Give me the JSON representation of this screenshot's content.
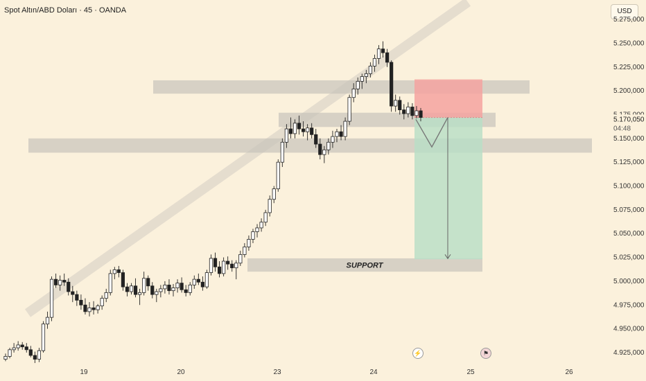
{
  "header": {
    "title": "Spot Altın/ABD Doları · 45 · OANDA",
    "currency": "USD"
  },
  "annotations": {
    "support_label": "SUPPORT",
    "current_price": "5.170,050",
    "countdown": "04:48",
    "partial_price": "5.175,000"
  },
  "events": {
    "lightning_icon": "lightning-icon",
    "flag_icon": "us-flag-icon"
  },
  "chart_data": {
    "type": "candlestick",
    "y_ticks": [
      "5.275,000",
      "5.250,000",
      "5.225,000",
      "5.200,000",
      "5.150,000",
      "5.125,000",
      "5.100,000",
      "5.075,000",
      "5.050,000",
      "5.025,000",
      "5.000,000",
      "4.975,000",
      "4.950,000",
      "4.925,000"
    ],
    "y_tick_values": [
      5275,
      5250,
      5225,
      5200,
      5150,
      5125,
      5100,
      5075,
      5050,
      5025,
      5000,
      4975,
      4950,
      4925
    ],
    "x_ticks": [
      "19",
      "20",
      "23",
      "24",
      "25",
      "26"
    ],
    "ylim": [
      4912,
      5294
    ],
    "zones": [
      {
        "name": "upper-resistance-zone",
        "low": 5197,
        "high": 5211
      },
      {
        "name": "mid-resistance-zone",
        "low": 5162,
        "high": 5177
      },
      {
        "name": "lower-support-zone",
        "low": 5135,
        "high": 5150
      },
      {
        "name": "support-zone",
        "low": 5010,
        "high": 5024
      }
    ],
    "position": {
      "entry": 5172,
      "stop": 5212,
      "target": 5023
    },
    "candles_ohlc": [
      [
        4918,
        4924,
        4916,
        4921
      ],
      [
        4921,
        4930,
        4919,
        4928
      ],
      [
        4928,
        4935,
        4925,
        4930
      ],
      [
        4930,
        4937,
        4927,
        4933
      ],
      [
        4933,
        4936,
        4928,
        4931
      ],
      [
        4931,
        4935,
        4925,
        4928
      ],
      [
        4928,
        4932,
        4920,
        4922
      ],
      [
        4922,
        4926,
        4914,
        4918
      ],
      [
        4918,
        4930,
        4915,
        4927
      ],
      [
        4927,
        4958,
        4925,
        4955
      ],
      [
        4955,
        4968,
        4950,
        4962
      ],
      [
        4962,
        5005,
        4958,
        5002
      ],
      [
        5002,
        5008,
        4993,
        4996
      ],
      [
        4996,
        5006,
        4990,
        5001
      ],
      [
        5001,
        5008,
        4995,
        4999
      ],
      [
        4999,
        5003,
        4985,
        4989
      ],
      [
        4989,
        4995,
        4978,
        4986
      ],
      [
        4986,
        4990,
        4974,
        4980
      ],
      [
        4980,
        4986,
        4970,
        4975
      ],
      [
        4975,
        4982,
        4965,
        4968
      ],
      [
        4968,
        4978,
        4963,
        4972
      ],
      [
        4972,
        4979,
        4965,
        4970
      ],
      [
        4970,
        4976,
        4966,
        4974
      ],
      [
        4974,
        4985,
        4970,
        4982
      ],
      [
        4982,
        4992,
        4978,
        4988
      ],
      [
        4988,
        5012,
        4985,
        5008
      ],
      [
        5008,
        5015,
        5002,
        5012
      ],
      [
        5012,
        5016,
        5004,
        5009
      ],
      [
        5009,
        5012,
        4990,
        4994
      ],
      [
        4994,
        4998,
        4984,
        4989
      ],
      [
        4989,
        4998,
        4986,
        4995
      ],
      [
        4995,
        5003,
        4983,
        4986
      ],
      [
        4986,
        4992,
        4975,
        4988
      ],
      [
        4988,
        5010,
        4985,
        5003
      ],
      [
        5003,
        5006,
        4990,
        4995
      ],
      [
        4995,
        4999,
        4982,
        4986
      ],
      [
        4986,
        4992,
        4978,
        4989
      ],
      [
        4989,
        4996,
        4983,
        4992
      ],
      [
        4992,
        5000,
        4987,
        4996
      ],
      [
        4996,
        5002,
        4986,
        4990
      ],
      [
        4990,
        4997,
        4984,
        4993
      ],
      [
        4993,
        5002,
        4988,
        4998
      ],
      [
        4998,
        5004,
        4988,
        4991
      ],
      [
        4991,
        4996,
        4984,
        4988
      ],
      [
        4988,
        4999,
        4985,
        4996
      ],
      [
        4996,
        5006,
        4992,
        5002
      ],
      [
        5002,
        5008,
        4996,
        4999
      ],
      [
        4999,
        5005,
        4990,
        4994
      ],
      [
        4994,
        5012,
        4992,
        5009
      ],
      [
        5009,
        5028,
        5006,
        5024
      ],
      [
        5024,
        5030,
        5010,
        5015
      ],
      [
        5015,
        5021,
        5004,
        5008
      ],
      [
        5008,
        5025,
        5005,
        5021
      ],
      [
        5021,
        5026,
        5012,
        5018
      ],
      [
        5018,
        5022,
        5010,
        5014
      ],
      [
        5014,
        5022,
        5002,
        5019
      ],
      [
        5019,
        5032,
        5016,
        5028
      ],
      [
        5028,
        5040,
        5025,
        5036
      ],
      [
        5036,
        5048,
        5032,
        5044
      ],
      [
        5044,
        5055,
        5040,
        5052
      ],
      [
        5052,
        5060,
        5046,
        5056
      ],
      [
        5056,
        5066,
        5052,
        5062
      ],
      [
        5062,
        5075,
        5058,
        5072
      ],
      [
        5072,
        5090,
        5068,
        5086
      ],
      [
        5086,
        5100,
        5082,
        5097
      ],
      [
        5097,
        5128,
        5094,
        5125
      ],
      [
        5125,
        5150,
        5120,
        5146
      ],
      [
        5146,
        5165,
        5140,
        5160
      ],
      [
        5160,
        5172,
        5150,
        5155
      ],
      [
        5155,
        5170,
        5150,
        5166
      ],
      [
        5166,
        5174,
        5154,
        5160
      ],
      [
        5160,
        5168,
        5152,
        5157
      ],
      [
        5157,
        5165,
        5148,
        5161
      ],
      [
        5161,
        5166,
        5150,
        5154
      ],
      [
        5154,
        5160,
        5140,
        5144
      ],
      [
        5144,
        5150,
        5128,
        5133
      ],
      [
        5133,
        5142,
        5124,
        5138
      ],
      [
        5138,
        5150,
        5133,
        5146
      ],
      [
        5146,
        5158,
        5140,
        5152
      ],
      [
        5152,
        5160,
        5146,
        5157
      ],
      [
        5157,
        5164,
        5148,
        5152
      ],
      [
        5152,
        5172,
        5148,
        5168
      ],
      [
        5168,
        5196,
        5164,
        5193
      ],
      [
        5193,
        5208,
        5188,
        5202
      ],
      [
        5202,
        5214,
        5196,
        5210
      ],
      [
        5210,
        5218,
        5202,
        5215
      ],
      [
        5215,
        5222,
        5208,
        5218
      ],
      [
        5218,
        5230,
        5214,
        5226
      ],
      [
        5226,
        5238,
        5220,
        5234
      ],
      [
        5234,
        5248,
        5228,
        5244
      ],
      [
        5244,
        5252,
        5235,
        5240
      ],
      [
        5240,
        5244,
        5225,
        5230
      ],
      [
        5230,
        5232,
        5178,
        5184
      ],
      [
        5184,
        5196,
        5178,
        5190
      ],
      [
        5190,
        5194,
        5175,
        5180
      ],
      [
        5180,
        5186,
        5170,
        5176
      ],
      [
        5176,
        5188,
        5172,
        5183
      ],
      [
        5183,
        5187,
        5170,
        5174
      ],
      [
        5174,
        5184,
        5171,
        5179
      ],
      [
        5179,
        5182,
        5168,
        5172
      ]
    ]
  }
}
